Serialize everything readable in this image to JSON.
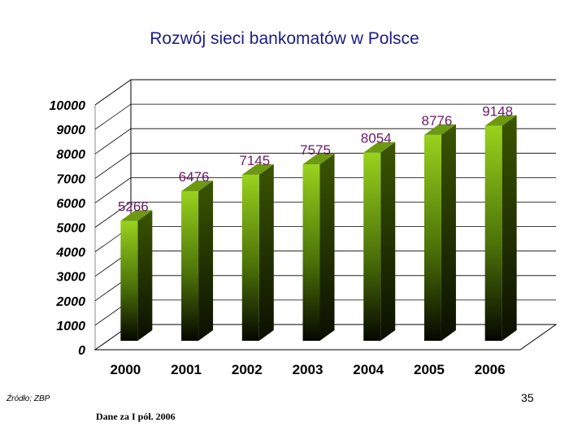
{
  "chart_data": {
    "type": "bar",
    "title": "Rozwój sieci bankomatów w Polsce",
    "categories": [
      "2000",
      "2001",
      "2002",
      "2003",
      "2004",
      "2005",
      "2006"
    ],
    "values": [
      5266,
      6476,
      7145,
      7575,
      8054,
      8776,
      9148
    ],
    "data_labels": [
      "5266",
      "6476",
      "7145",
      "7575",
      "8054",
      "8776",
      "9148"
    ],
    "y_ticks": [
      "0",
      "1000",
      "2000",
      "3000",
      "4000",
      "5000",
      "6000",
      "7000",
      "8000",
      "9000",
      "10000"
    ],
    "ylim": [
      0,
      10000
    ],
    "xlabel": "",
    "ylabel": "",
    "grid": true,
    "style": "3d",
    "colors": {
      "bar_top": "#99d21e",
      "bar_bottom": "#050700",
      "bar_side": "#3b5600",
      "bar_cap": "#6d9a10",
      "data_label": "#6a1a68",
      "title": "#1c1c8a",
      "grid": "#000000"
    }
  },
  "footer": {
    "source": "Źródło: ZBP",
    "page_number": "35",
    "note": "Dane za I pół. 2006"
  }
}
